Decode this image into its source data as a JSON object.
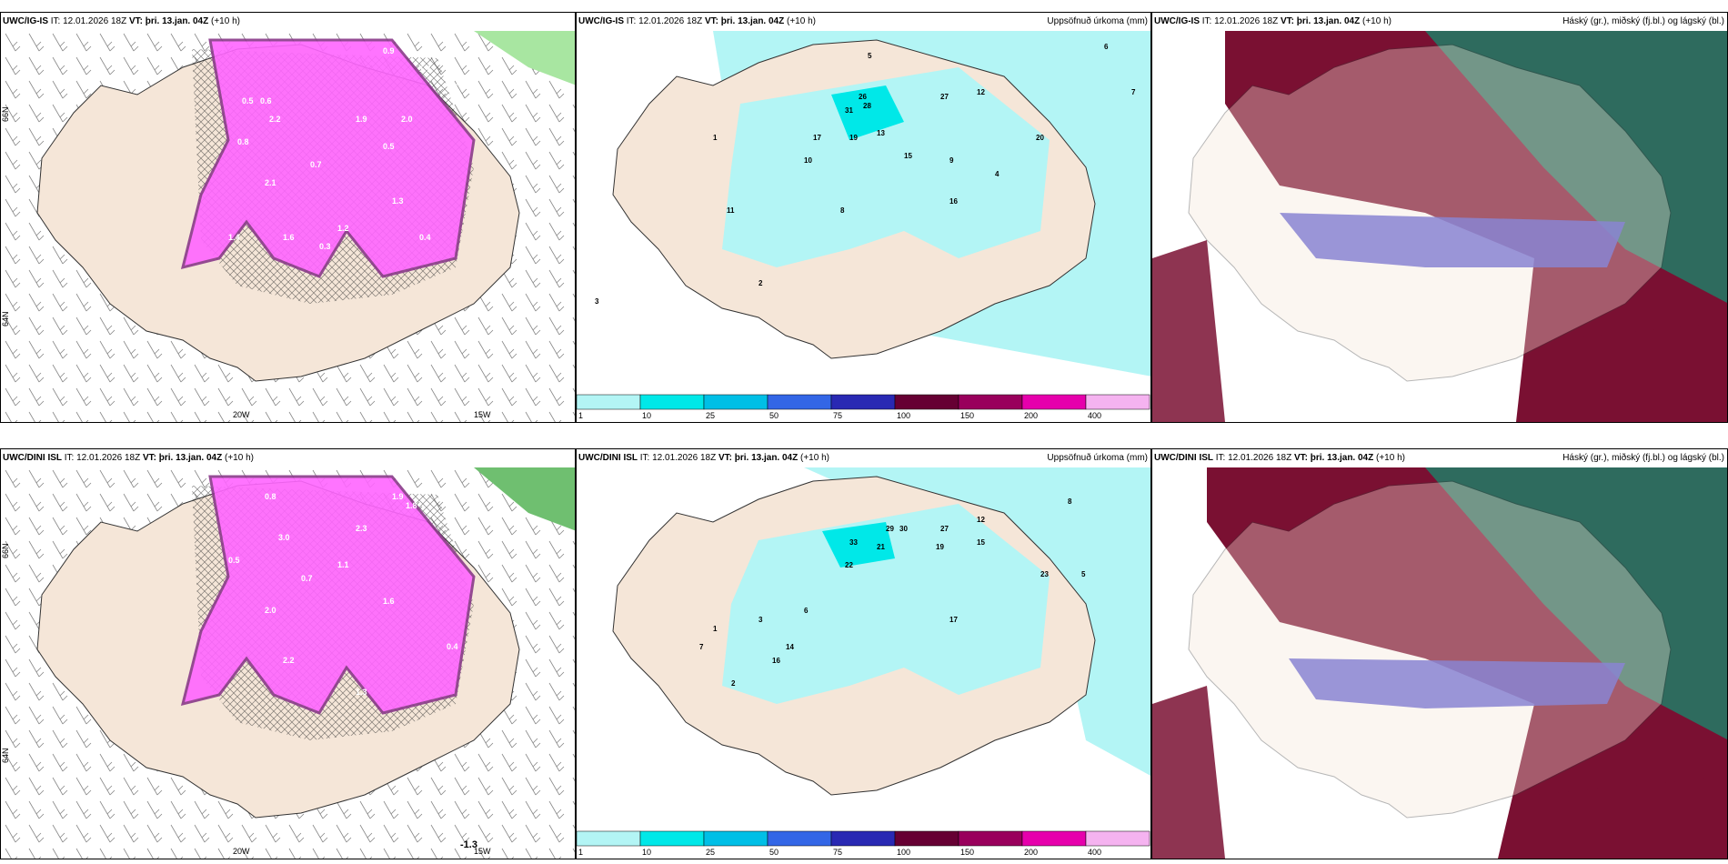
{
  "panels": [
    {
      "model": "UWC/IG-IS",
      "it_label": "IT:",
      "it": "12.01.2026 18Z",
      "vt_label": "VT:",
      "vt": "þri. 13.jan. 04Z",
      "lead": "(+10 h)",
      "right": "",
      "grid_labels": [
        "20W",
        "15W",
        "66N",
        "64N"
      ],
      "values": [
        "0.9",
        "1.7",
        "2.5",
        "0.5",
        "0.6",
        "2.2",
        "2.0",
        "0.8",
        "1.9",
        "2.1",
        "1.2",
        "0.5",
        "1.4",
        "0.4",
        "1.6",
        "0.3",
        "0.7",
        "1.3"
      ]
    },
    {
      "model": "UWC/IG-IS",
      "it_label": "IT:",
      "it": "12.01.2026 18Z",
      "vt_label": "VT:",
      "vt": "þri. 13.jan. 04Z",
      "lead": "(+10 h)",
      "right": "Uppsöfnuð úrkoma (mm)",
      "values": [
        "5",
        "6",
        "7",
        "12",
        "26",
        "28",
        "31",
        "27",
        "17",
        "19",
        "13",
        "15",
        "10",
        "20",
        "9",
        "4",
        "11",
        "8",
        "16",
        "2",
        "3",
        "1"
      ]
    },
    {
      "model": "UWC/IG-IS",
      "it_label": "IT:",
      "it": "12.01.2026 18Z",
      "vt_label": "VT:",
      "vt": "þri. 13.jan. 04Z",
      "lead": "(+10 h)",
      "right": "Háský (gr.), miðský (fj.bl.) og lágský (bl.)"
    },
    {
      "model": "UWC/DINI ISL",
      "it_label": "IT:",
      "it": "12.01.2026 18Z",
      "vt_label": "VT:",
      "vt": "þri. 13.jan. 04Z",
      "lead": "(+10 h)",
      "right": "",
      "grid_labels": [
        "20W",
        "15W",
        "66N",
        "64N"
      ],
      "values": [
        "0.8",
        "1.9",
        "1.8",
        "3.0",
        "2.3",
        "0.5",
        "1.6",
        "0.7",
        "2.2",
        "0.4",
        "1.1",
        "2.0",
        "1.3",
        "-1.3"
      ]
    },
    {
      "model": "UWC/DINI ISL",
      "it_label": "IT:",
      "it": "12.01.2026 18Z",
      "vt_label": "VT:",
      "vt": "þri. 13.jan. 04Z",
      "lead": "(+10 h)",
      "right": "Uppsöfnuð úrkoma (mm)",
      "values": [
        "8",
        "12",
        "27",
        "29",
        "30",
        "33",
        "21",
        "19",
        "15",
        "22",
        "23",
        "5",
        "17",
        "14",
        "16",
        "6",
        "2",
        "1",
        "3",
        "7"
      ]
    },
    {
      "model": "UWC/DINI ISL",
      "it_label": "IT:",
      "it": "12.01.2026 18Z",
      "vt_label": "VT:",
      "vt": "þri. 13.jan. 04Z",
      "lead": "(+10 h)",
      "right": "Háský (gr.), miðský (fj.bl.) og lágský (bl.)"
    }
  ],
  "colorbar": {
    "labels": [
      "1",
      "10",
      "25",
      "50",
      "75",
      "100",
      "150",
      "200",
      "400"
    ],
    "colors": [
      "#b3f5f5",
      "#00e8e8",
      "#00bfe6",
      "#3366e6",
      "#2929b3",
      "#660033",
      "#99005c",
      "#e600ac",
      "#f5b3f0"
    ]
  },
  "colors": {
    "land": "#f5e6d8",
    "sea": "#ffffff",
    "precip_light": "#b3f5f5",
    "precip_mid": "#00e8e8",
    "snow": "#ff66ff",
    "snow_dark": "#8a3a8a",
    "cloud_high": "#2e6b5e",
    "cloud_mid": "#7a1032",
    "cloud_low": "#5050d0"
  }
}
